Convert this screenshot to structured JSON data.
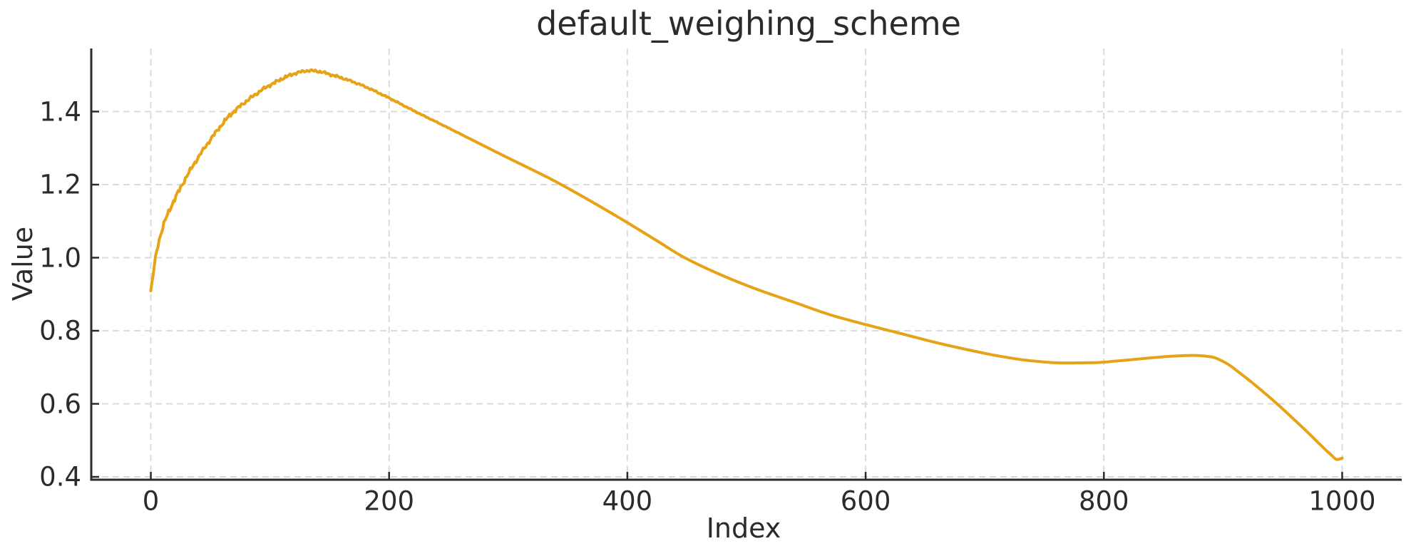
{
  "figure": {
    "background": "#ffffff"
  },
  "chart_data": {
    "type": "line",
    "title": "default_weighing_scheme",
    "xlabel": "Index",
    "ylabel": "Value",
    "xlim": [
      -50,
      1050
    ],
    "ylim": [
      0.3922,
      1.5727
    ],
    "grid": {
      "show": true,
      "style": "dashed",
      "color": "#DBDBDB"
    },
    "legend": "none",
    "axis_color": "#2b2b2b",
    "text_color": "#2b2b2b",
    "xticks": {
      "values": [
        0,
        200,
        400,
        600,
        800,
        1000
      ],
      "labels": [
        "0",
        "200",
        "400",
        "600",
        "800",
        "1000"
      ]
    },
    "yticks": {
      "values": [
        0.4,
        0.6,
        0.8,
        1.0,
        1.2,
        1.4
      ],
      "labels": [
        "0.4",
        "0.6",
        "0.8",
        "1.0",
        "1.2",
        "1.4"
      ]
    },
    "series": [
      {
        "name": "default_weighing_scheme",
        "color": "#E7A215",
        "line_width": 4,
        "x_range": [
          0,
          1000
        ],
        "noise": {
          "amplitude": 0.008,
          "fade_end": 280
        },
        "points": [
          [
            0,
            0.905
          ],
          [
            2,
            0.955
          ],
          [
            5,
            1.02
          ],
          [
            8,
            1.06
          ],
          [
            13,
            1.11
          ],
          [
            20,
            1.16
          ],
          [
            28,
            1.21
          ],
          [
            36,
            1.255
          ],
          [
            45,
            1.3
          ],
          [
            55,
            1.345
          ],
          [
            65,
            1.385
          ],
          [
            75,
            1.415
          ],
          [
            85,
            1.44
          ],
          [
            95,
            1.463
          ],
          [
            105,
            1.481
          ],
          [
            115,
            1.497
          ],
          [
            125,
            1.508
          ],
          [
            133,
            1.512
          ],
          [
            142,
            1.509
          ],
          [
            152,
            1.5
          ],
          [
            165,
            1.487
          ],
          [
            180,
            1.468
          ],
          [
            200,
            1.437
          ],
          [
            222,
            1.4
          ],
          [
            245,
            1.363
          ],
          [
            270,
            1.322
          ],
          [
            295,
            1.281
          ],
          [
            320,
            1.241
          ],
          [
            336,
            1.215
          ],
          [
            360,
            1.172
          ],
          [
            385,
            1.125
          ],
          [
            400,
            1.096
          ],
          [
            425,
            1.046
          ],
          [
            447,
            1.002
          ],
          [
            480,
            0.951
          ],
          [
            510,
            0.912
          ],
          [
            540,
            0.878
          ],
          [
            570,
            0.844
          ],
          [
            600,
            0.817
          ],
          [
            630,
            0.792
          ],
          [
            660,
            0.767
          ],
          [
            690,
            0.745
          ],
          [
            715,
            0.729
          ],
          [
            740,
            0.7175
          ],
          [
            765,
            0.712
          ],
          [
            790,
            0.7125
          ],
          [
            815,
            0.7185
          ],
          [
            840,
            0.726
          ],
          [
            858,
            0.7305
          ],
          [
            875,
            0.7325
          ],
          [
            890,
            0.7285
          ],
          [
            902,
            0.7125
          ],
          [
            915,
            0.682
          ],
          [
            930,
            0.643
          ],
          [
            945,
            0.601
          ],
          [
            960,
            0.556
          ],
          [
            972,
            0.519
          ],
          [
            982,
            0.487
          ],
          [
            990,
            0.4625
          ],
          [
            996,
            0.4475
          ],
          [
            1000,
            0.4515
          ]
        ]
      }
    ]
  }
}
